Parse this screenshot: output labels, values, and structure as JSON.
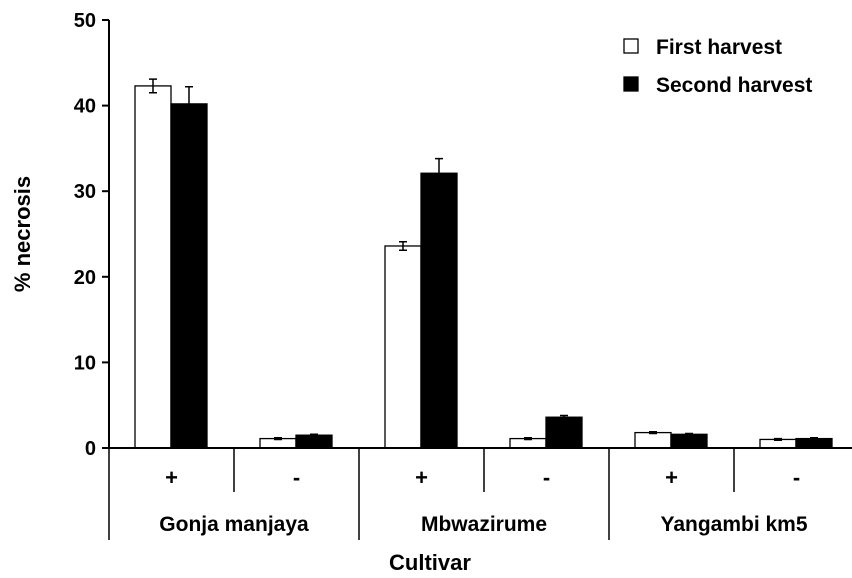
{
  "chart_data": {
    "type": "bar",
    "title": "",
    "xlabel": "Cultivar",
    "ylabel": "% necrosis",
    "ylim": [
      0,
      50
    ],
    "yticks": [
      0,
      10,
      20,
      30,
      40,
      50
    ],
    "grid": false,
    "legend_position": "top-right",
    "groups": [
      "Gonja manjaya",
      "Mbwazirume",
      "Yangambi km5"
    ],
    "categories": [
      "+",
      "-",
      "+",
      "-",
      "+",
      "-"
    ],
    "series": [
      {
        "name": "First harvest",
        "color": "#ffffff",
        "values": [
          42.3,
          1.1,
          23.6,
          1.1,
          1.8,
          1.0
        ],
        "errors": [
          0.8,
          0.1,
          0.5,
          0.1,
          0.1,
          0.1
        ]
      },
      {
        "name": "Second harvest",
        "color": "#000000",
        "values": [
          40.2,
          1.5,
          32.1,
          3.6,
          1.6,
          1.1
        ],
        "errors": [
          2.0,
          0.1,
          1.7,
          0.2,
          0.1,
          0.1
        ]
      }
    ]
  }
}
